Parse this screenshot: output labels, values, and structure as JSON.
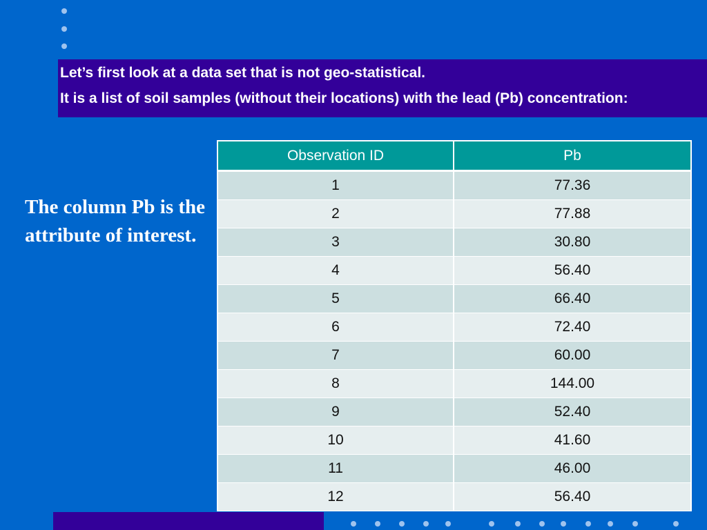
{
  "intro": {
    "line1": "Let’s first look at a data set that is not geo-statistical.",
    "line2": "It is a list of soil samples (without their locations) with the lead (Pb) concentration:"
  },
  "side_note": " The column Pb is the attribute of interest.",
  "table": {
    "headers": [
      "Observation ID",
      "Pb"
    ],
    "rows": [
      [
        "1",
        "77.36"
      ],
      [
        "2",
        "77.88"
      ],
      [
        "3",
        "30.80"
      ],
      [
        "4",
        "56.40"
      ],
      [
        "5",
        "66.40"
      ],
      [
        "6",
        "72.40"
      ],
      [
        "7",
        "60.00"
      ],
      [
        "8",
        "144.00"
      ],
      [
        "9",
        "52.40"
      ],
      [
        "10",
        "41.60"
      ],
      [
        "11",
        "46.00"
      ],
      [
        "12",
        "56.40"
      ]
    ]
  },
  "colors": {
    "background": "#0066cc",
    "band": "#330099",
    "table_header": "#009999",
    "row_odd": "#ccdfe0",
    "row_even": "#e6eeef"
  }
}
